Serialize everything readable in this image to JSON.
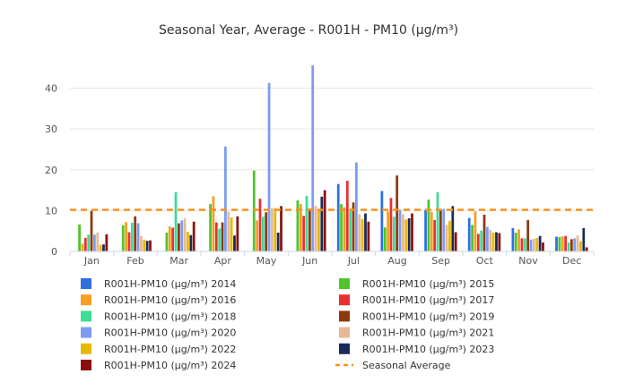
{
  "chart_data": {
    "type": "bar",
    "title": "Seasonal Year, Average - R001H - PM10 (µg/m³)",
    "xlabel": "",
    "ylabel": "",
    "ylim": [
      0,
      48
    ],
    "yticks": [
      0,
      10,
      20,
      30,
      40
    ],
    "grid": true,
    "legend_position": "bottom",
    "categories": [
      "Jan",
      "Feb",
      "Mar",
      "Apr",
      "May",
      "Jun",
      "Jul",
      "Aug",
      "Sep",
      "Oct",
      "Nov",
      "Dec"
    ],
    "series": [
      {
        "name": "R001H-PM10 (µg/m³) 2014",
        "color": "#2f6fe0",
        "values": [
          null,
          null,
          null,
          null,
          null,
          null,
          16.5,
          14.8,
          10.2,
          8.2,
          5.7,
          3.6
        ]
      },
      {
        "name": "R001H-PM10 (µg/m³) 2015",
        "color": "#4fc52a",
        "values": [
          6.6,
          6.4,
          4.6,
          11.6,
          19.8,
          12.5,
          11.6,
          5.9,
          12.7,
          6.5,
          4.6,
          3.5
        ]
      },
      {
        "name": "R001H-PM10 (µg/m³) 2016",
        "color": "#f5a020",
        "values": [
          1.9,
          7.2,
          6.1,
          13.5,
          7.6,
          11.6,
          10.8,
          9.8,
          9.7,
          9.8,
          5.4,
          3.7
        ]
      },
      {
        "name": "R001H-PM10 (µg/m³) 2017",
        "color": "#e83030",
        "values": [
          3.3,
          4.7,
          5.8,
          7.1,
          12.9,
          8.7,
          17.3,
          13.1,
          7.7,
          4.3,
          3.2,
          3.8
        ]
      },
      {
        "name": "R001H-PM10 (µg/m³) 2018",
        "color": "#3ddc97",
        "values": [
          4.1,
          7.0,
          14.5,
          5.6,
          8.5,
          13.6,
          10.5,
          8.5,
          14.5,
          5.1,
          3.2,
          2.2
        ]
      },
      {
        "name": "R001H-PM10 (µg/m³) 2019",
        "color": "#8b3a10",
        "values": [
          9.9,
          8.6,
          6.9,
          7.1,
          9.6,
          10.5,
          12.0,
          18.6,
          10.4,
          9.0,
          7.7,
          3.0
        ]
      },
      {
        "name": "R001H-PM10 (µg/m³) 2020",
        "color": "#7b9cf0",
        "values": [
          4.1,
          6.9,
          7.6,
          25.7,
          41.3,
          45.6,
          21.8,
          10.2,
          10.4,
          6.0,
          2.9,
          3.2
        ]
      },
      {
        "name": "R001H-PM10 (µg/m³) 2021",
        "color": "#e8b896",
        "values": [
          4.6,
          3.8,
          8.1,
          9.7,
          10.6,
          11.1,
          9.1,
          9.1,
          6.5,
          5.3,
          3.1,
          3.9
        ]
      },
      {
        "name": "R001H-PM10 (µg/m³) 2022",
        "color": "#e6b800",
        "values": [
          1.6,
          2.9,
          4.8,
          8.3,
          10.6,
          10.1,
          7.9,
          7.8,
          7.5,
          4.6,
          3.3,
          2.5
        ]
      },
      {
        "name": "R001H-PM10 (µg/m³) 2023",
        "color": "#1a2a5a",
        "values": [
          1.7,
          2.6,
          4.0,
          3.9,
          4.6,
          13.4,
          9.3,
          8.1,
          11.1,
          4.7,
          3.8,
          5.7
        ]
      },
      {
        "name": "R001H-PM10 (µg/m³) 2024",
        "color": "#8a1010",
        "values": [
          4.2,
          2.7,
          7.3,
          8.6,
          11.1,
          15.0,
          7.3,
          9.3,
          4.7,
          4.5,
          2.2,
          1.0
        ]
      }
    ],
    "reference_line": {
      "name": "Seasonal Average",
      "value": 10.2,
      "color": "#f5921e",
      "style": "dashed"
    }
  }
}
